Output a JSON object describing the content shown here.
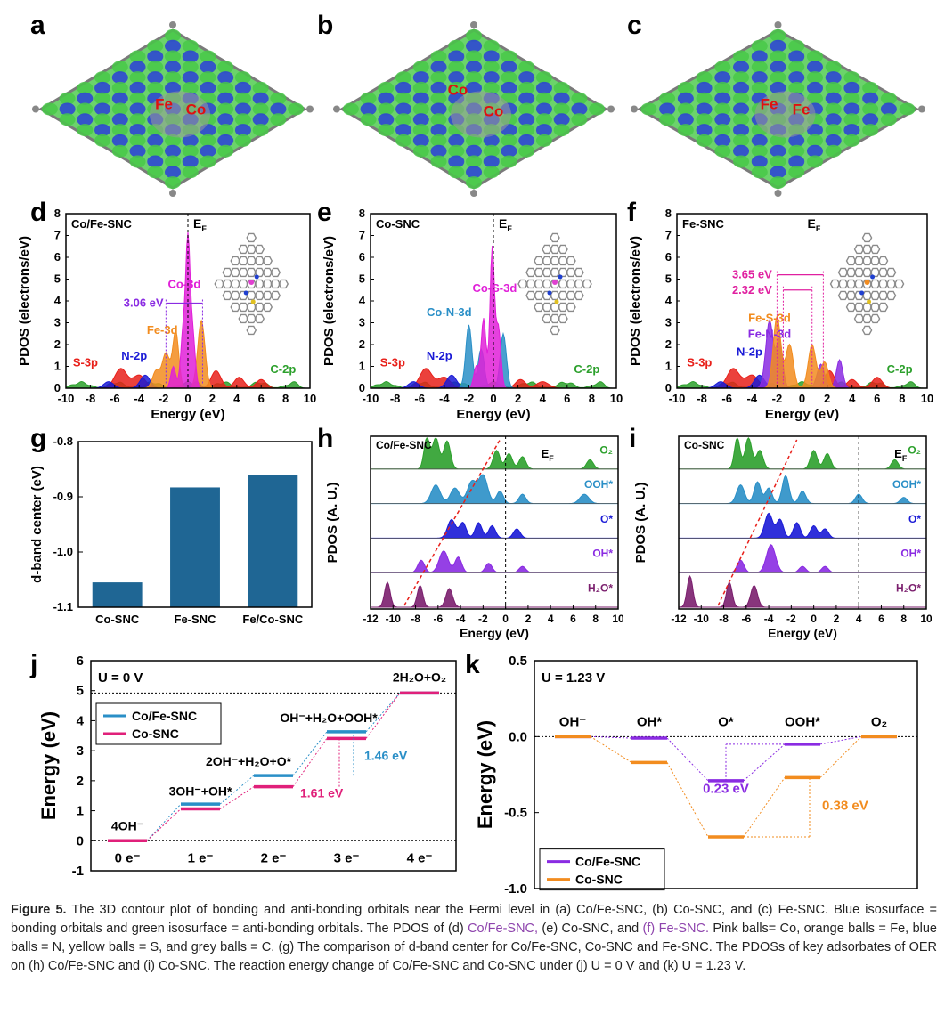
{
  "panels": {
    "a": {
      "letter": "a",
      "atoms": [
        "Fe",
        "Co"
      ]
    },
    "b": {
      "letter": "b",
      "atoms": [
        "Co",
        "Co"
      ]
    },
    "c": {
      "letter": "c",
      "atoms": [
        "Fe",
        "Fe"
      ]
    },
    "d": {
      "letter": "d",
      "system": "Co/Fe-SNC",
      "peak_labels": [
        "Co-3d",
        "Fe-3d",
        "S-3p",
        "N-2p",
        "C-2p"
      ],
      "gap": "3.06 eV",
      "fermi": "E",
      "fermi_sub": "F"
    },
    "e": {
      "letter": "e",
      "system": "Co-SNC",
      "peak_labels": [
        "Co-S-3d",
        "Co-N-3d",
        "S-3p",
        "N-2p",
        "C-2p"
      ],
      "fermi": "E",
      "fermi_sub": "F"
    },
    "f": {
      "letter": "f",
      "system": "Fe-SNC",
      "peak_labels": [
        "Fe-S-3d",
        "Fe-N-3d",
        "S-3p",
        "N-2p",
        "C-2p"
      ],
      "gaps": [
        "3.65 eV",
        "2.32 eV"
      ],
      "fermi": "E",
      "fermi_sub": "F"
    },
    "g": {
      "letter": "g"
    },
    "h": {
      "letter": "h",
      "system": "Co/Fe-SNC"
    },
    "i": {
      "letter": "i",
      "system": "Co-SNC"
    },
    "j": {
      "letter": "j",
      "condition": "U = 0 V"
    },
    "k": {
      "letter": "k",
      "condition": "U = 1.23 V"
    }
  },
  "pdos_axes": {
    "ylabel": "PDOS (electrons/eV)",
    "xlabel": "Energy (eV)",
    "xticks": [
      "-10",
      "-8",
      "-6",
      "-4",
      "-2",
      "0",
      "2",
      "4",
      "6",
      "8",
      "10"
    ],
    "yticks": [
      "0",
      "1",
      "2",
      "3",
      "4",
      "5",
      "6",
      "7",
      "8"
    ]
  },
  "ads_axes": {
    "ylabel": "PDOS (A. U.)",
    "xlabel": "Energy (eV)",
    "xticks": [
      "-12",
      "-10",
      "-8",
      "-6",
      "-4",
      "-2",
      "0",
      "2",
      "4",
      "6",
      "8",
      "10"
    ],
    "rows": [
      "O₂",
      "OOH*",
      "O*",
      "OH*",
      "H₂O*"
    ],
    "colors": [
      "#2ca02c",
      "#2a8fc7",
      "#1a1ad6",
      "#8a2be2",
      "#7b1f6e"
    ]
  },
  "chart_data": [
    {
      "type": "bar",
      "panel": "g",
      "categories": [
        "Co-SNC",
        "Fe-SNC",
        "Fe/Co-SNC"
      ],
      "values": [
        -1.055,
        -0.883,
        -0.86
      ],
      "ylabel": "d-band center (eV)",
      "yticks": [
        "-0.8",
        "-0.9",
        "-1.0",
        "-1.1"
      ],
      "ylim": [
        -1.1,
        -0.8
      ],
      "color": "#1f6694"
    },
    {
      "type": "line",
      "panel": "j",
      "ylabel": "Energy (eV)",
      "ylim": [
        -1,
        6
      ],
      "yticks": [
        "-1",
        "0",
        "1",
        "2",
        "3",
        "4",
        "5",
        "6"
      ],
      "categories": [
        "0 e⁻",
        "1 e⁻",
        "2 e⁻",
        "3 e⁻",
        "4 e⁻"
      ],
      "step_labels": [
        "4OH⁻",
        "3OH⁻+OH*",
        "2OH⁻+H₂O+O*",
        "OH⁻+H₂O+OOH*",
        "2H₂O+O₂"
      ],
      "series": [
        {
          "name": "Co/Fe-SNC",
          "color": "#2a8fc7",
          "values": [
            0,
            1.22,
            2.17,
            3.63,
            4.92
          ]
        },
        {
          "name": "Co-SNC",
          "color": "#e0207a",
          "values": [
            0,
            1.06,
            1.8,
            3.41,
            4.92
          ]
        }
      ],
      "annotations": [
        "1.46 eV",
        "1.61 eV"
      ]
    },
    {
      "type": "line",
      "panel": "k",
      "ylabel": "Energy (eV)",
      "ylim": [
        -1.0,
        0.5
      ],
      "yticks": [
        "0.5",
        "0.0",
        "-0.5",
        "-1.0"
      ],
      "categories": [
        "OH⁻",
        "OH*",
        "O*",
        "OOH*",
        "O₂"
      ],
      "series": [
        {
          "name": "Co/Fe-SNC",
          "color": "#8a2be2",
          "values": [
            0.0,
            -0.01,
            -0.29,
            -0.05,
            0.0
          ]
        },
        {
          "name": "Co-SNC",
          "color": "#f28c1f",
          "values": [
            0.0,
            -0.17,
            -0.66,
            -0.27,
            0.0
          ]
        }
      ],
      "annotations": [
        "0.23 eV",
        "0.38 eV"
      ]
    }
  ],
  "caption": {
    "fig": "Figure 5.",
    "p1": " The 3D contour plot of bonding and anti-bonding orbitals near the Fermi level in (a) Co/Fe-SNC, (b) Co-SNC, and (c) Fe-SNC. Blue isosurface = bonding orbitals and green isosurface = anti-bonding orbitals. The PDOS of (d) ",
    "hl1": "Co/Fe-SNC,",
    "p2": " (e) Co-SNC, and ",
    "hl2": "(f) Fe-SNC.",
    "p3": " Pink balls= Co, orange balls = Fe, blue balls = N, yellow balls = S, and grey balls = C. (g) The comparison of d-band center for Co/Fe-SNC, Co-SNC and Fe-SNC. The PDOSs of key adsorbates of OER on (h) Co/Fe-SNC and (i) Co-SNC. The reaction energy change of Co/Fe-SNC and Co-SNC under (j) U = 0 V and (k) U = 1.23 V."
  }
}
